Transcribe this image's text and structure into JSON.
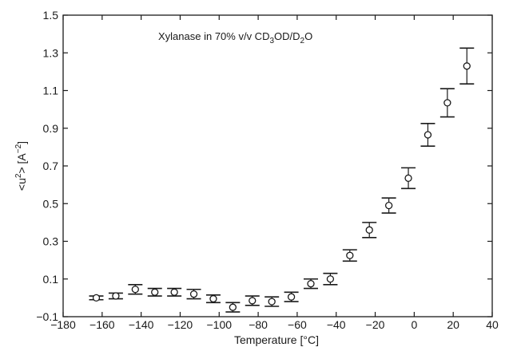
{
  "chart_data": {
    "type": "scatter",
    "title": "",
    "annotation": {
      "parts": [
        {
          "text": "Xylanase in 70% v/v CD"
        },
        {
          "text": "3",
          "sub": true
        },
        {
          "text": "OD/D"
        },
        {
          "text": "2",
          "sub": true
        },
        {
          "text": "O"
        }
      ]
    },
    "xlabel": "Temperature [°C]",
    "ylabel": {
      "parts": [
        {
          "text": "<u"
        },
        {
          "text": "2",
          "sup": true
        },
        {
          "text": "> [A"
        },
        {
          "text": "−2",
          "sup": true
        },
        {
          "text": "]"
        }
      ]
    },
    "xlim": [
      -180,
      40
    ],
    "ylim": [
      -0.1,
      1.5
    ],
    "xticks": [
      -180,
      -160,
      -140,
      -120,
      -100,
      -80,
      -60,
      -40,
      -20,
      0,
      20,
      40
    ],
    "xtick_labels": [
      "−180",
      "−160",
      "−140",
      "−120",
      "−100",
      "−80",
      "−60",
      "−40",
      "−20",
      "0",
      "20",
      "40"
    ],
    "yticks": [
      -0.1,
      0.1,
      0.3,
      0.5,
      0.7,
      0.9,
      1.1,
      1.3,
      1.5
    ],
    "ytick_labels": [
      "−0.1",
      "0.1",
      "0.3",
      "0.5",
      "0.7",
      "0.9",
      "1.1",
      "1.3",
      "1.5"
    ],
    "grid": false,
    "marker": "open-circle",
    "color": "#1a1a1a",
    "series": [
      {
        "x": [
          -163,
          -153,
          -143,
          -133,
          -123,
          -113,
          -103,
          -93,
          -83,
          -73,
          -63,
          -53,
          -43,
          -33,
          -23,
          -13,
          -3,
          7,
          17,
          27
        ],
        "y": [
          0.0,
          0.01,
          0.045,
          0.03,
          0.03,
          0.02,
          -0.005,
          -0.05,
          -0.015,
          -0.02,
          0.005,
          0.075,
          0.1,
          0.225,
          0.36,
          0.49,
          0.635,
          0.865,
          1.035,
          1.23
        ],
        "yerr": [
          0.01,
          0.015,
          0.025,
          0.02,
          0.02,
          0.025,
          0.02,
          0.025,
          0.025,
          0.025,
          0.025,
          0.025,
          0.03,
          0.03,
          0.04,
          0.04,
          0.055,
          0.06,
          0.075,
          0.095
        ]
      }
    ]
  }
}
